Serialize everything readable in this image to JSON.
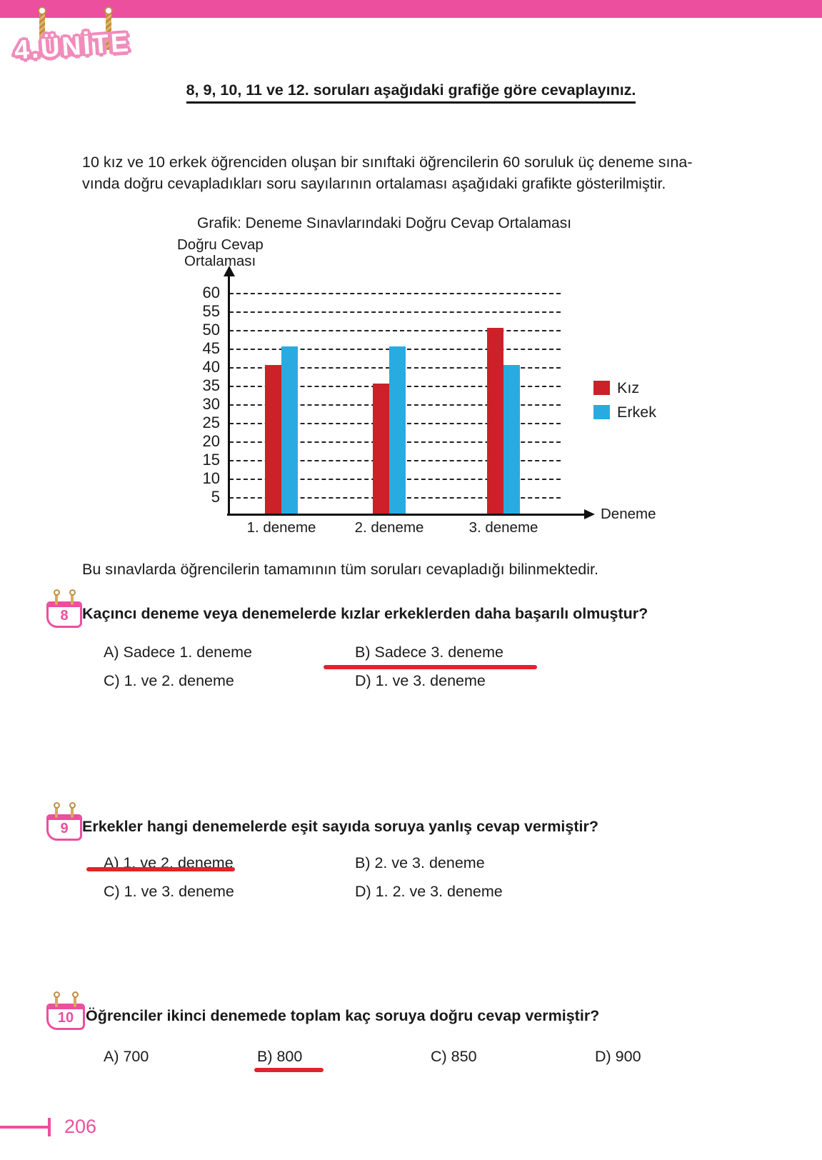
{
  "logo": {
    "unit_label": "4.ÜNİTE"
  },
  "header": {
    "instruction": "8, 9, 10, 11 ve 12. soruları aşağıdaki grafiğe göre cevaplayınız."
  },
  "intro": {
    "line1": "10 kız ve 10 erkek öğrenciden oluşan bir sınıftaki öğrencilerin 60 soruluk üç deneme sına-",
    "line2": "vında doğru cevapladıkları soru sayılarının ortalaması aşağıdaki grafikte gösterilmiştir."
  },
  "chart_data": {
    "type": "bar",
    "title": "Grafik: Deneme Sınavlarındaki Doğru Cevap Ortalaması",
    "ylabel_lines": [
      "Doğru Cevap",
      "Ortalaması"
    ],
    "xlabel": "Deneme",
    "categories": [
      "1. deneme",
      "2. deneme",
      "3. deneme"
    ],
    "series": [
      {
        "name": "Kız",
        "color": "#cc2128",
        "values": [
          40,
          35,
          50
        ]
      },
      {
        "name": "Erkek",
        "color": "#29abe2",
        "values": [
          45,
          45,
          40
        ]
      }
    ],
    "ylim": [
      0,
      60
    ],
    "yticks": [
      5,
      10,
      15,
      20,
      25,
      30,
      35,
      40,
      45,
      50,
      55,
      60
    ],
    "grid": true,
    "legend_position": "right"
  },
  "note": "Bu sınavlarda öğrencilerin tamamının tüm soruları cevapladığı bilinmektedir.",
  "questions": [
    {
      "number": "8",
      "text": "Kaçıncı deneme veya denemelerde kızlar erkeklerden daha başarılı olmuştur?",
      "options": [
        {
          "label": "A) Sadece 1. deneme",
          "underlined": false
        },
        {
          "label": "B) Sadece 3. deneme",
          "underlined": true
        },
        {
          "label": "C) 1. ve 2. deneme",
          "underlined": false
        },
        {
          "label": "D) 1. ve 3. deneme",
          "underlined": false
        }
      ]
    },
    {
      "number": "9",
      "text": "Erkekler hangi denemelerde eşit sayıda soruya yanlış cevap vermiştir?",
      "options": [
        {
          "label": "A) 1. ve 2. deneme",
          "underlined": true
        },
        {
          "label": "B) 2. ve 3. deneme",
          "underlined": false
        },
        {
          "label": "C) 1. ve 3. deneme",
          "underlined": false
        },
        {
          "label": "D) 1. 2. ve 3. deneme",
          "underlined": false
        }
      ]
    },
    {
      "number": "10",
      "text": "Öğrenciler ikinci denemede toplam kaç soruya doğru cevap vermiştir?",
      "options": [
        {
          "label": "A) 700",
          "underlined": false
        },
        {
          "label": "B) 800",
          "underlined": true
        },
        {
          "label": "C) 850",
          "underlined": false
        },
        {
          "label": "D) 900",
          "underlined": false
        }
      ]
    }
  ],
  "footer": {
    "page_number": "206"
  },
  "colors": {
    "accent_pink": "#ec4f9e",
    "kiz_red": "#cc2128",
    "erkek_blue": "#29abe2",
    "underline_red": "#e4222b",
    "pin_gold": "#d9a85e"
  }
}
